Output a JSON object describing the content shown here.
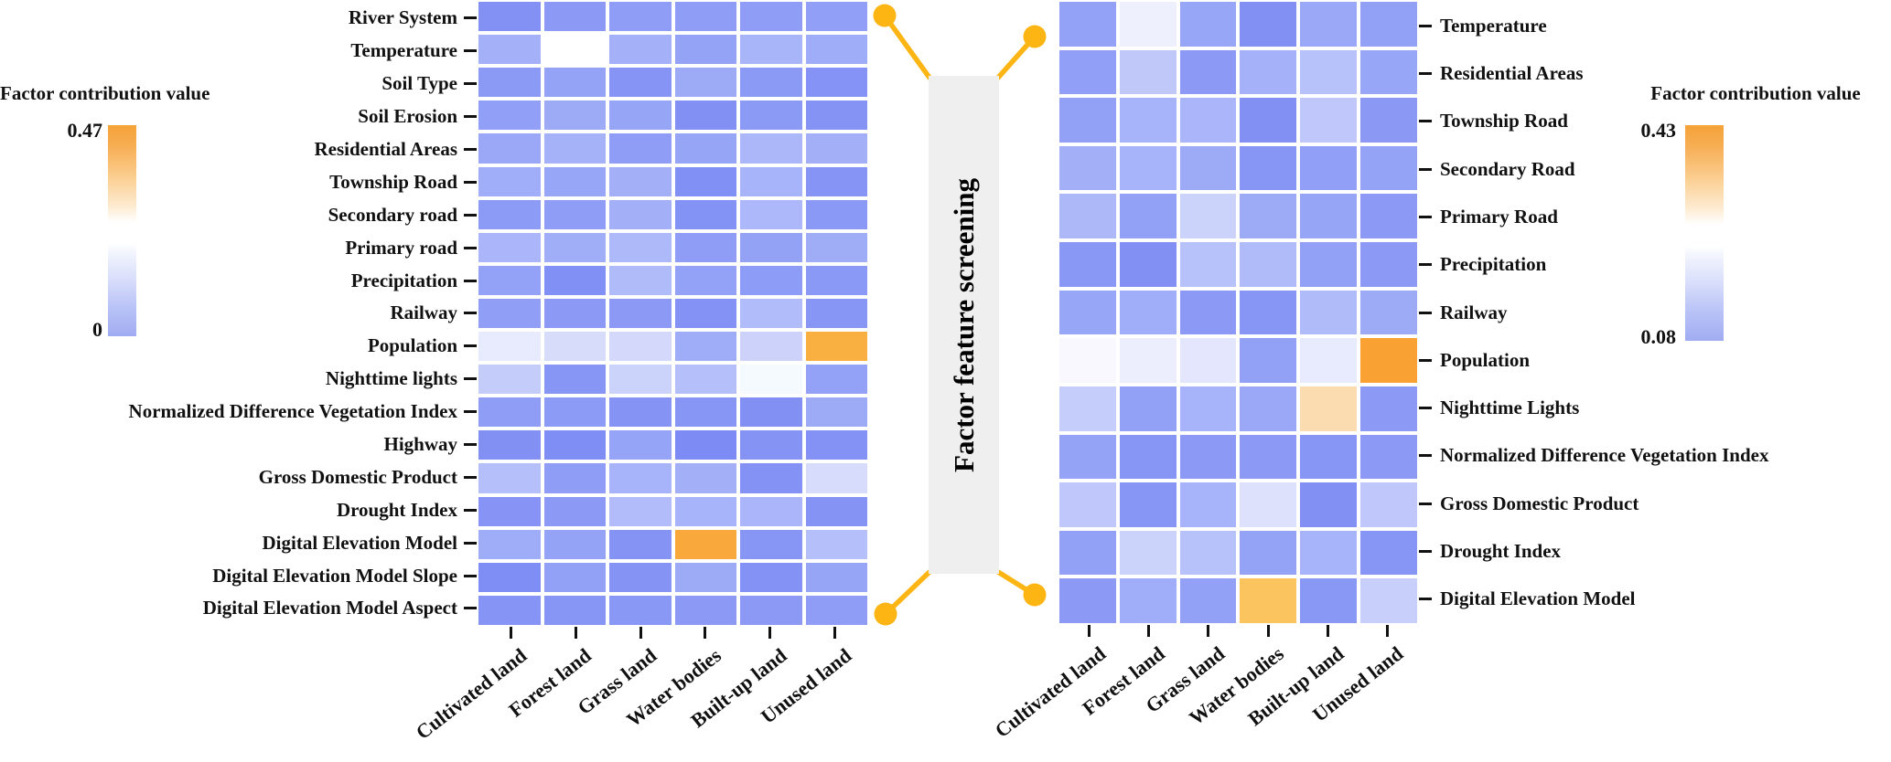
{
  "figure": {
    "center_label": "Factor feature screening",
    "connector_color": "#fcb513",
    "center_box_color": "#efefef"
  },
  "left_panel": {
    "colorbar": {
      "title": "Factor contribution value",
      "max": "0.47",
      "min": "0",
      "top_color": "#f5a238",
      "bottom_color": "#a0acf2"
    },
    "heatmap": {
      "rows": [
        "River System",
        "Temperature",
        "Soil Type",
        "Soil Erosion",
        "Residential Areas",
        "Township Road",
        "Secondary road",
        "Primary road",
        "Precipitation",
        "Railway",
        "Population",
        "Nighttime lights",
        "Normalized Difference Vegetation Index",
        "Highway",
        "Gross Domestic Product",
        "Drought Index",
        "Digital Elevation Model",
        "Digital Elevation Model Slope",
        "Digital Elevation Model Aspect"
      ],
      "columns": [
        "Cultivated land",
        "Forest land",
        "Grass land",
        "Water bodies",
        "Built-up land",
        "Unused land"
      ],
      "cell_colors": [
        [
          "#8391f5",
          "#8c9af6",
          "#8f9df6",
          "#8f9df6",
          "#8f9df6",
          "#919ff6"
        ],
        [
          "#a4b1f8",
          "#ffffff",
          "#a4b1f8",
          "#95a3f6",
          "#a9b5f9",
          "#9fadf8"
        ],
        [
          "#8b9af5",
          "#95a3f7",
          "#8694f5",
          "#9dabf7",
          "#8b9af5",
          "#8493f5"
        ],
        [
          "#919ff6",
          "#9dabf7",
          "#97a5f7",
          "#8290f4",
          "#8b9af5",
          "#8593f5"
        ],
        [
          "#9aa8f7",
          "#a5b2f8",
          "#8f9df6",
          "#97a5f6",
          "#abb7f9",
          "#a3b0f8"
        ],
        [
          "#a0adf8",
          "#98a6f7",
          "#a3b0f8",
          "#8090f4",
          "#a8b4f9",
          "#8695f5"
        ],
        [
          "#8c9bf5",
          "#8f9df6",
          "#a3b0f8",
          "#8392f5",
          "#acb8f9",
          "#8a99f5"
        ],
        [
          "#aab6f9",
          "#a0aef8",
          "#aeb9f9",
          "#8f9df6",
          "#94a2f6",
          "#9fadf7"
        ],
        [
          "#93a1f6",
          "#8190f4",
          "#b0bbfa",
          "#93a1f6",
          "#8d9cf6",
          "#8a99f5"
        ],
        [
          "#909ef6",
          "#8c9af5",
          "#8c9af5",
          "#8492f5",
          "#b1bcfa",
          "#8795f5"
        ],
        [
          "#e8eafd",
          "#d8dcfb",
          "#d4d8fb",
          "#9fadf8",
          "#ccd2fa",
          "#fab041"
        ],
        [
          "#c4ccfa",
          "#8795f5",
          "#ccd3fa",
          "#b5bffa",
          "#f5faff",
          "#93a1f6"
        ],
        [
          "#8f9df6",
          "#8c9bf5",
          "#8593f5",
          "#8795f5",
          "#8290f4",
          "#9dabf7"
        ],
        [
          "#8290f4",
          "#7f8ef4",
          "#96a4f7",
          "#7d8cf4",
          "#8593f5",
          "#8492f5"
        ],
        [
          "#b5bffa",
          "#8f9df6",
          "#a8b4f9",
          "#a3b0f8",
          "#8492f5",
          "#d8dcfc"
        ],
        [
          "#8794f5",
          "#8c9af6",
          "#b2bcfa",
          "#a8b4f9",
          "#aab6f9",
          "#8593f5"
        ],
        [
          "#9fadf8",
          "#95a3f6",
          "#8593f5",
          "#f9a93c",
          "#8795f5",
          "#b5bffa"
        ],
        [
          "#7f8ef4",
          "#92a0f6",
          "#8593f5",
          "#9dabf7",
          "#8492f5",
          "#97a5f7"
        ],
        [
          "#8694f5",
          "#8795f5",
          "#8997f5",
          "#8c9af6",
          "#8c9af6",
          "#8f9df6"
        ]
      ]
    }
  },
  "right_panel": {
    "colorbar": {
      "title": "Factor contribution value",
      "max": "0.43",
      "min": "0.08",
      "top_color": "#f5a238",
      "bottom_color": "#a0acf2"
    },
    "heatmap": {
      "rows": [
        "Temperature",
        "Residential Areas",
        "Township Road",
        "Secondary Road",
        "Primary Road",
        "Precipitation",
        "Railway",
        "Population",
        "Nighttime Lights",
        "Normalized Difference Vegetation Index",
        "Gross Domestic Product",
        "Drought Index",
        "Digital Elevation Model"
      ],
      "columns": [
        "Cultivated land",
        "Forest land",
        "Grass land",
        "Water bodies",
        "Built-up land",
        "Unused land"
      ],
      "cell_colors": [
        [
          "#93a1f6",
          "#eef1fd",
          "#98a6f7",
          "#8290f4",
          "#9aa8f7",
          "#92a0f6"
        ],
        [
          "#919ff6",
          "#c0c8fa",
          "#8c9af5",
          "#a5b1f8",
          "#b7c1fa",
          "#98a6f7"
        ],
        [
          "#92a0f6",
          "#a8b4f9",
          "#aab6f9",
          "#8290f4",
          "#c0c8fb",
          "#8b99f5"
        ],
        [
          "#a3b0f8",
          "#a8b4f9",
          "#9dabf7",
          "#8795f5",
          "#919ff6",
          "#95a3f6"
        ],
        [
          "#adb8f9",
          "#92a0f6",
          "#ccd3fb",
          "#9dabf7",
          "#97a5f7",
          "#8c9af5"
        ],
        [
          "#8997f5",
          "#8290f4",
          "#b7c1fa",
          "#b0bbf9",
          "#92a0f6",
          "#8c9af5"
        ],
        [
          "#98a6f7",
          "#a0adf8",
          "#8c9af5",
          "#8795f5",
          "#b0bbf9",
          "#9dabf7"
        ],
        [
          "#f8f8fe",
          "#eceefd",
          "#e3e6fc",
          "#92a0f6",
          "#e8ebfd",
          "#f9a233"
        ],
        [
          "#c5cdfb",
          "#92a0f6",
          "#a8b4f9",
          "#9aa8f7",
          "#fbdcb0",
          "#8c9af5"
        ],
        [
          "#95a3f6",
          "#8795f5",
          "#8c9af5",
          "#8c9af5",
          "#8795f5",
          "#8c9af5"
        ],
        [
          "#c0c8fb",
          "#8795f5",
          "#a8b4f9",
          "#dde1fc",
          "#8290f4",
          "#c0c8fb"
        ],
        [
          "#92a0f6",
          "#ccd3fb",
          "#b7c1fa",
          "#95a3f6",
          "#a8b4f9",
          "#8795f5"
        ],
        [
          "#8c9af5",
          "#a0adf8",
          "#92a0f6",
          "#fbc45e",
          "#8997f5",
          "#c8cffb"
        ]
      ]
    }
  },
  "chart_data": [
    {
      "type": "heatmap",
      "title": "Factor contribution value (before screening)",
      "rows": [
        "River System",
        "Temperature",
        "Soil Type",
        "Soil Erosion",
        "Residential Areas",
        "Township Road",
        "Secondary road",
        "Primary road",
        "Precipitation",
        "Railway",
        "Population",
        "Nighttime lights",
        "Normalized Difference Vegetation Index",
        "Highway",
        "Gross Domestic Product",
        "Drought Index",
        "Digital Elevation Model",
        "Digital Elevation Model Slope",
        "Digital Elevation Model Aspect"
      ],
      "columns": [
        "Cultivated land",
        "Forest land",
        "Grass land",
        "Water bodies",
        "Built-up land",
        "Unused land"
      ],
      "colorbar_range": [
        0,
        0.47
      ],
      "values_estimated_from_color": true,
      "values": [
        [
          0.04,
          0.05,
          0.06,
          0.06,
          0.06,
          0.06
        ],
        [
          0.11,
          0.24,
          0.11,
          0.07,
          0.12,
          0.1
        ],
        [
          0.05,
          0.07,
          0.04,
          0.09,
          0.05,
          0.04
        ],
        [
          0.06,
          0.09,
          0.08,
          0.03,
          0.05,
          0.04
        ],
        [
          0.09,
          0.11,
          0.06,
          0.08,
          0.12,
          0.11
        ],
        [
          0.1,
          0.08,
          0.11,
          0.03,
          0.12,
          0.04
        ],
        [
          0.05,
          0.06,
          0.11,
          0.03,
          0.13,
          0.05
        ],
        [
          0.12,
          0.1,
          0.13,
          0.06,
          0.07,
          0.1
        ],
        [
          0.07,
          0.03,
          0.14,
          0.07,
          0.05,
          0.05
        ],
        [
          0.06,
          0.05,
          0.05,
          0.03,
          0.14,
          0.04
        ],
        [
          0.22,
          0.2,
          0.19,
          0.1,
          0.16,
          0.44
        ],
        [
          0.17,
          0.04,
          0.16,
          0.15,
          0.24,
          0.07
        ],
        [
          0.06,
          0.05,
          0.04,
          0.04,
          0.03,
          0.09
        ],
        [
          0.03,
          0.02,
          0.08,
          0.02,
          0.04,
          0.03
        ],
        [
          0.15,
          0.06,
          0.12,
          0.11,
          0.03,
          0.18
        ],
        [
          0.04,
          0.05,
          0.14,
          0.12,
          0.12,
          0.04
        ],
        [
          0.1,
          0.07,
          0.04,
          0.46,
          0.04,
          0.15
        ],
        [
          0.02,
          0.07,
          0.04,
          0.09,
          0.03,
          0.08
        ],
        [
          0.04,
          0.04,
          0.05,
          0.05,
          0.05,
          0.06
        ]
      ],
      "legend_position": "left"
    },
    {
      "type": "heatmap",
      "title": "Factor contribution value (after screening)",
      "rows": [
        "Temperature",
        "Residential Areas",
        "Township Road",
        "Secondary Road",
        "Primary Road",
        "Precipitation",
        "Railway",
        "Population",
        "Nighttime Lights",
        "Normalized Difference Vegetation Index",
        "Gross Domestic Product",
        "Drought Index",
        "Digital Elevation Model"
      ],
      "columns": [
        "Cultivated land",
        "Forest land",
        "Grass land",
        "Water bodies",
        "Built-up land",
        "Unused land"
      ],
      "colorbar_range": [
        0.08,
        0.43
      ],
      "values_estimated_from_color": true,
      "values": [
        [
          0.12,
          0.24,
          0.13,
          0.09,
          0.13,
          0.12
        ],
        [
          0.12,
          0.19,
          0.11,
          0.15,
          0.18,
          0.13
        ],
        [
          0.12,
          0.16,
          0.16,
          0.09,
          0.19,
          0.11
        ],
        [
          0.15,
          0.16,
          0.14,
          0.1,
          0.12,
          0.12
        ],
        [
          0.17,
          0.12,
          0.2,
          0.14,
          0.13,
          0.11
        ],
        [
          0.1,
          0.09,
          0.18,
          0.17,
          0.12,
          0.11
        ],
        [
          0.13,
          0.15,
          0.11,
          0.1,
          0.17,
          0.14
        ],
        [
          0.25,
          0.24,
          0.23,
          0.12,
          0.24,
          0.43
        ],
        [
          0.19,
          0.12,
          0.16,
          0.13,
          0.32,
          0.11
        ],
        [
          0.12,
          0.1,
          0.11,
          0.11,
          0.1,
          0.11
        ],
        [
          0.19,
          0.1,
          0.16,
          0.22,
          0.09,
          0.19
        ],
        [
          0.12,
          0.2,
          0.18,
          0.12,
          0.16,
          0.1
        ],
        [
          0.11,
          0.15,
          0.12,
          0.37,
          0.1,
          0.2
        ]
      ],
      "legend_position": "right"
    }
  ]
}
